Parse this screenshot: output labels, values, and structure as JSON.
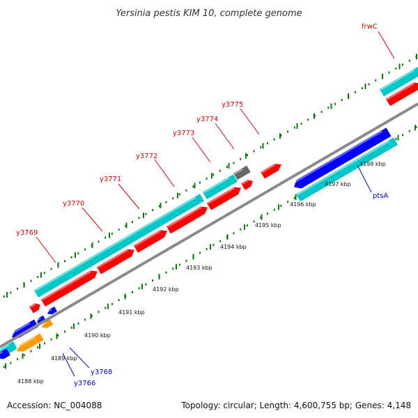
{
  "title": "Yersinia pestis KIM 10, complete genome",
  "footer": {
    "accession": "Accession: NC_004088",
    "topology": "Topology: circular; Length: 4,600,755 bp; Genes: 4,148"
  },
  "colors": {
    "forward_label": "#e00000",
    "reverse_label": "#0000c8",
    "backbone": "#888888",
    "tick": "#0b7a0b",
    "cds_forward": "#ff0000",
    "cds_reverse": "#0000ff",
    "gene_cyan": "#00c8c8",
    "rna_orange": "#ff9900",
    "gray_feature": "#666666"
  },
  "ruler_ticks": [
    {
      "label": "4188 kbp"
    },
    {
      "label": "4189 kbp"
    },
    {
      "label": "4190 kbp"
    },
    {
      "label": "4191 kbp"
    },
    {
      "label": "4192 kbp"
    },
    {
      "label": "4193 kbp"
    },
    {
      "label": "4194 kbp"
    },
    {
      "label": "4195 kbp"
    },
    {
      "label": "4196 kbp"
    },
    {
      "label": "4197 kbp"
    },
    {
      "label": "4198 kbp"
    }
  ],
  "gene_labels": {
    "forward": [
      "y3769",
      "y3770",
      "y3771",
      "y3772",
      "y3773",
      "y3774",
      "y3775",
      "frwC"
    ],
    "reverse": [
      "y3766",
      "y3768",
      "ptsA"
    ]
  }
}
